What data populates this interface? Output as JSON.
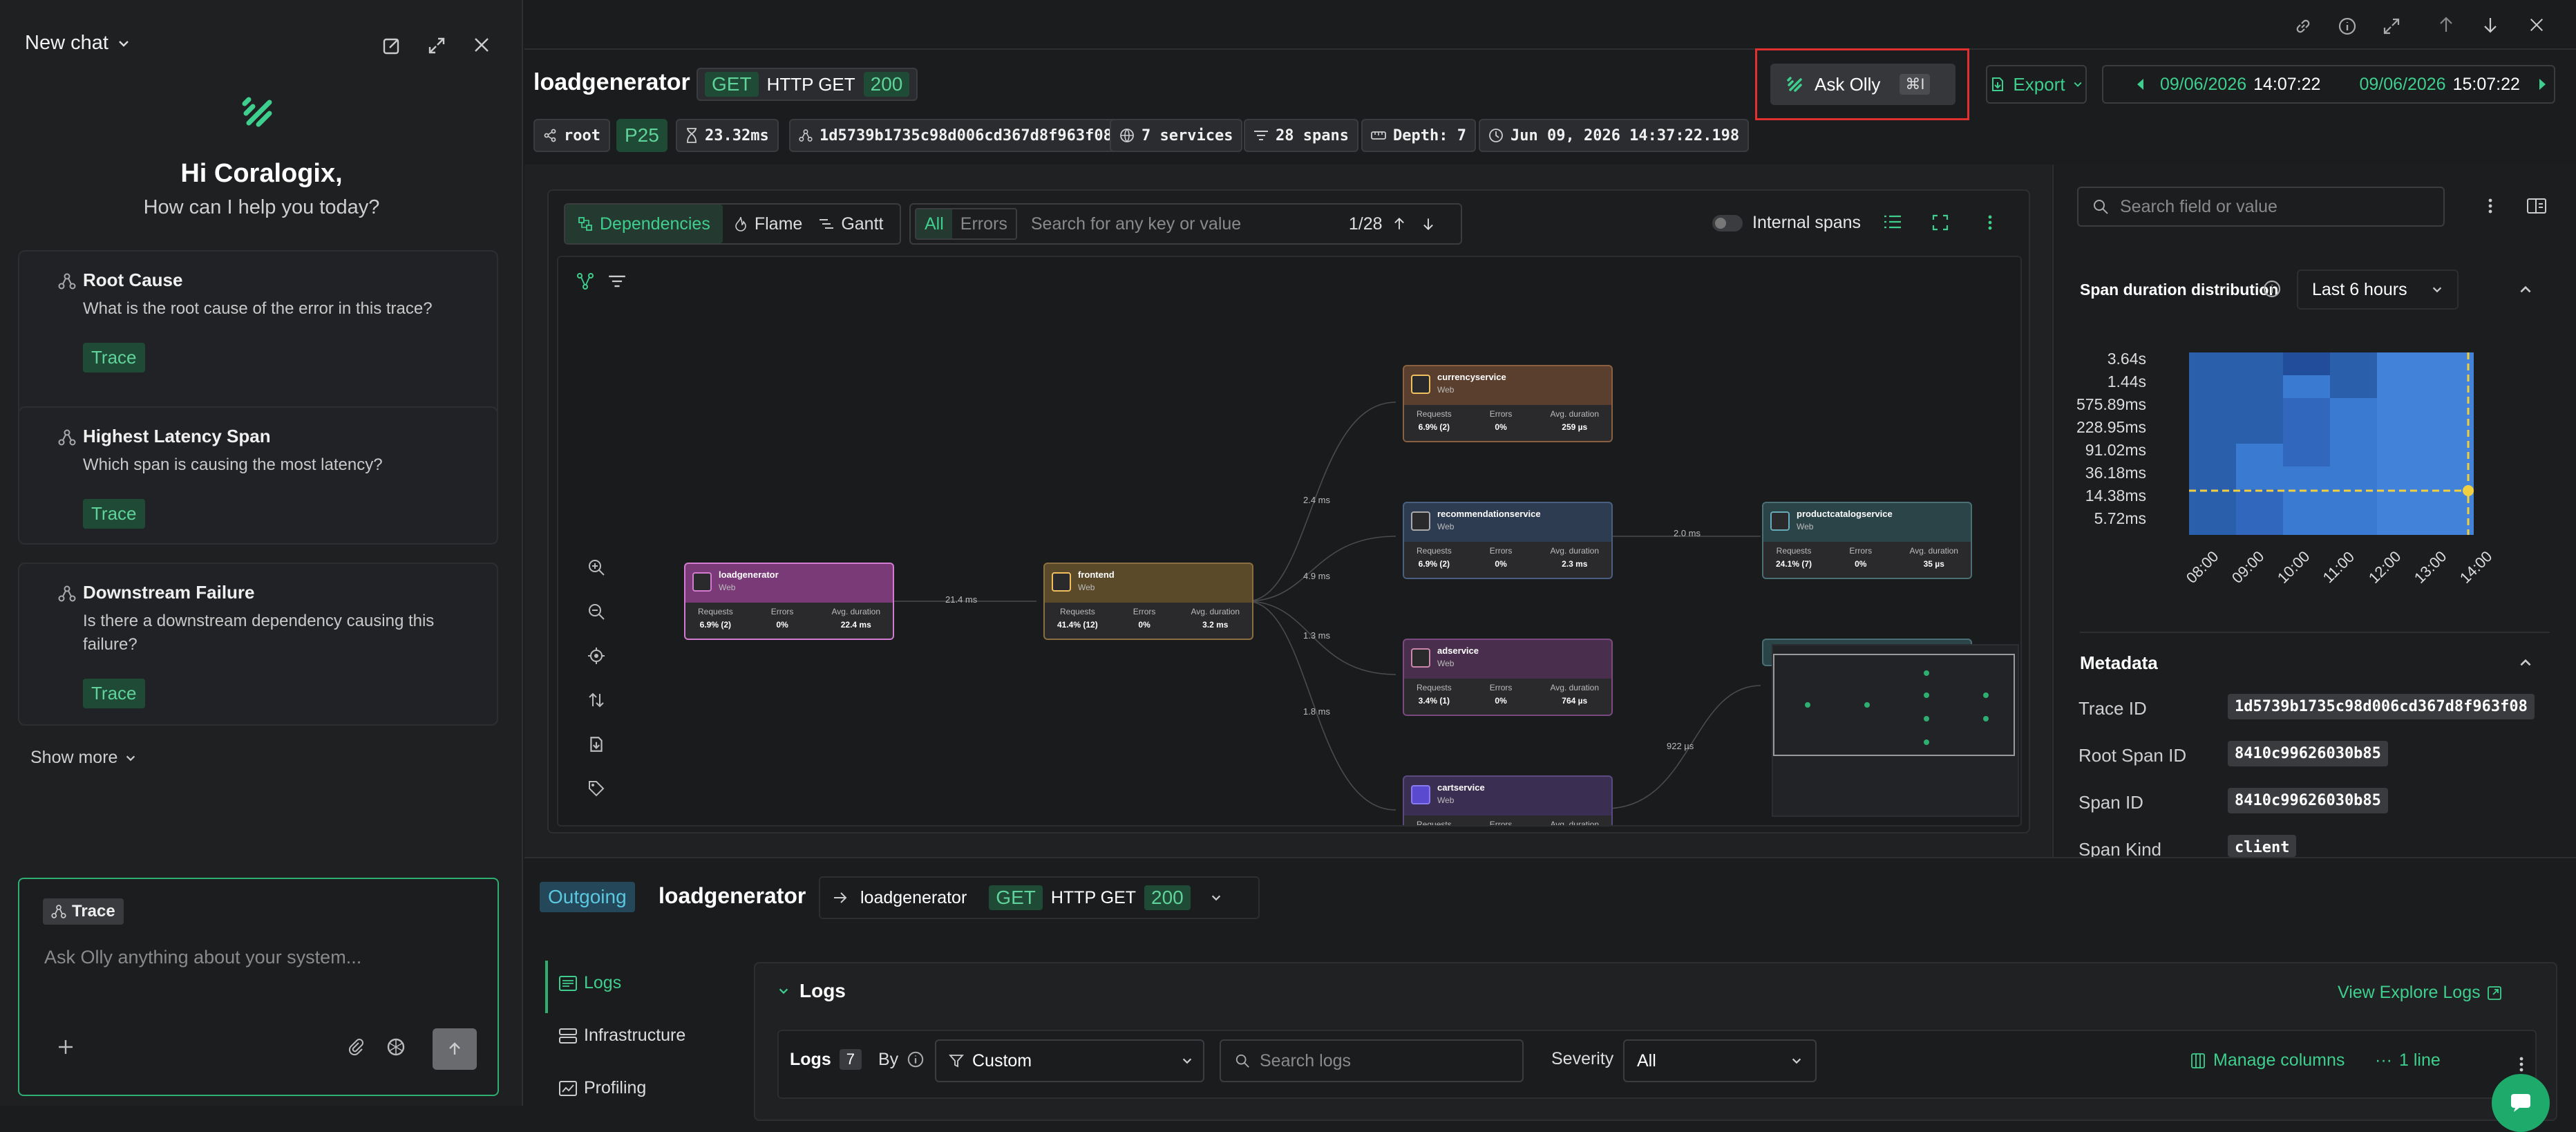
{
  "chat": {
    "title": "New chat",
    "greeting": "Hi Coralogix,",
    "subgreeting": "How can I help you today?",
    "suggestions": [
      {
        "title": "Root Cause",
        "desc": "What is the root cause of the error in this trace?",
        "tag": "Trace"
      },
      {
        "title": "Highest Latency Span",
        "desc": "Which span is causing the most latency?",
        "tag": "Trace"
      },
      {
        "title": "Downstream Failure",
        "desc": "Is there a downstream dependency causing this failure?",
        "tag": "Trace"
      }
    ],
    "show_more": "Show more",
    "context_chip": "Trace",
    "input_placeholder": "Ask Olly anything about your system..."
  },
  "trace": {
    "service": "loadgenerator",
    "method": "GET",
    "name": "HTTP GET",
    "status": "200",
    "ask_olly": "Ask Olly",
    "ask_shortcut": "⌘I",
    "export": "Export",
    "range_from_date": "09/06/2026",
    "range_from_time": "14:07:22",
    "range_to_date": "09/06/2026",
    "range_to_time": "15:07:22",
    "pills": {
      "root": "root",
      "percentile": "P25",
      "duration": "23.32ms",
      "trace_id": "1d5739b1735c98d006cd367d8f963f08",
      "services": "7 services",
      "spans": "28 spans",
      "depth": "Depth: 7",
      "timestamp": "Jun 09, 2026 14:37:22.198"
    }
  },
  "graph": {
    "tabs": [
      "Dependencies",
      "Flame",
      "Gantt"
    ],
    "filter_all": "All",
    "filter_errors": "Errors",
    "search_placeholder": "Search for any key or value",
    "counter": "1/28",
    "internal_spans": "Internal spans",
    "col_requests": "Requests",
    "col_errors": "Errors",
    "col_avg": "Avg. duration",
    "nodes": [
      {
        "name": "loadgenerator",
        "type": "Web",
        "requests": "6.9% (2)",
        "errors": "0%",
        "avg": "22.4 ms",
        "color": "#7a3a78",
        "border": "#d37bd0"
      },
      {
        "name": "frontend",
        "type": "Web",
        "requests": "41.4% (12)",
        "errors": "0%",
        "avg": "3.2 ms",
        "color": "#5a4a2a",
        "border": "#8a7040"
      },
      {
        "name": "currencyservice",
        "type": "Web",
        "requests": "6.9% (2)",
        "errors": "0%",
        "avg": "259 µs",
        "color": "#5a3e2e",
        "border": "#8a6040"
      },
      {
        "name": "recommendationservice",
        "type": "Web",
        "requests": "6.9% (2)",
        "errors": "0%",
        "avg": "2.3 ms",
        "color": "#2e3c52",
        "border": "#4a6080"
      },
      {
        "name": "productcatalogservice",
        "type": "Web",
        "requests": "24.1% (7)",
        "errors": "0%",
        "avg": "35 µs",
        "color": "#2a4448",
        "border": "#4a7076"
      },
      {
        "name": "adservice",
        "type": "Web",
        "requests": "3.4% (1)",
        "errors": "0%",
        "avg": "764 µs",
        "color": "#4a2e4e",
        "border": "#7a4a80"
      },
      {
        "name": "cartservice",
        "type": "Web",
        "requests": "",
        "errors": "",
        "avg": "",
        "color": "#3a2e52",
        "border": "#5a4a80"
      }
    ],
    "edge_labels": [
      "21.4 ms",
      "2.4 ms",
      "4.9 ms",
      "1.3 ms",
      "1.8 ms",
      "2.0 ms",
      "922 µs"
    ]
  },
  "side": {
    "search_placeholder": "Search field or value",
    "dist_title": "Span duration distribution",
    "dist_range": "Last 6 hours",
    "y_ticks": [
      "3.64s",
      "1.44s",
      "575.89ms",
      "228.95ms",
      "91.02ms",
      "36.18ms",
      "14.38ms",
      "5.72ms"
    ],
    "x_ticks": [
      "08:00",
      "09:00",
      "10:00",
      "11:00",
      "12:00",
      "13:00",
      "14:00"
    ],
    "metadata_title": "Metadata",
    "metadata": [
      {
        "key": "Trace ID",
        "value": "1d5739b1735c98d006cd367d8f963f08"
      },
      {
        "key": "Root Span ID",
        "value": "8410c99626030b85"
      },
      {
        "key": "Span ID",
        "value": "8410c99626030b85"
      },
      {
        "key": "Span Kind",
        "value": "client"
      }
    ]
  },
  "bottom": {
    "direction": "Outgoing",
    "service": "loadgenerator",
    "target": "loadgenerator",
    "method": "GET",
    "name": "HTTP GET",
    "status": "200",
    "nav": [
      "Logs",
      "Infrastructure",
      "Profiling"
    ],
    "logs_title": "Logs",
    "view_explore": "View Explore Logs",
    "logs_label": "Logs",
    "logs_count": "7",
    "by": "By",
    "custom": "Custom",
    "search_logs": "Search logs",
    "severity": "Severity",
    "severity_val": "All",
    "manage_columns": "Manage columns",
    "lines": "1 line"
  }
}
